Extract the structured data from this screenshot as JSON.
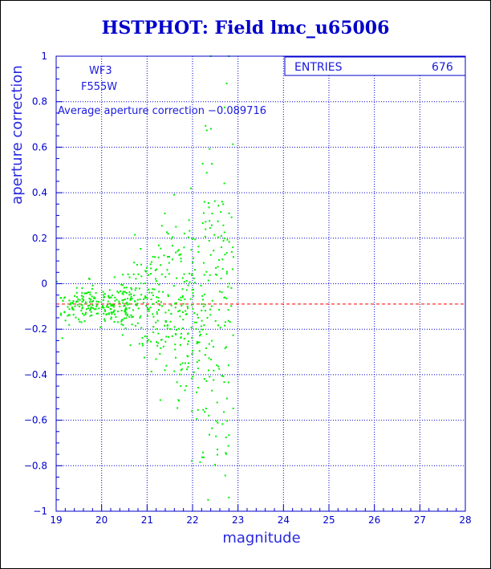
{
  "title": "HSTPHOT: Field lmc_u65006",
  "chart_data": {
    "type": "scatter",
    "title": "HSTPHOT: Field lmc_u65006",
    "xlabel": "magnitude",
    "ylabel": "aperture correction",
    "xlim": [
      19,
      28
    ],
    "ylim": [
      -1,
      1
    ],
    "x_ticks": [
      19,
      20,
      21,
      22,
      23,
      24,
      25,
      26,
      27,
      28
    ],
    "y_ticks": [
      -1,
      -0.8,
      -0.6,
      -0.4,
      -0.2,
      0,
      0.2,
      0.4,
      0.6,
      0.8,
      1
    ],
    "x_tick_labels": [
      "19",
      "20",
      "21",
      "22",
      "23",
      "24",
      "25",
      "26",
      "27",
      "28"
    ],
    "y_tick_labels": [
      "−1",
      "−0.8",
      "−0.6",
      "−0.4",
      "−0.2",
      "0",
      "0.2",
      "0.4",
      "0.6",
      "0.8",
      "1"
    ],
    "grid": true,
    "point_color": "#00ee00",
    "reference_line": {
      "y": -0.089716,
      "color": "#ff0000",
      "style": "dashed"
    },
    "annotations": {
      "camera": "WF3",
      "filter": "F555W",
      "average_text": "Average aperture correction −0.089716"
    },
    "stats": {
      "entries_label": "ENTRIES",
      "entries_value": "676"
    },
    "points_summary": {
      "count": 676,
      "x_range": [
        19.0,
        22.9
      ],
      "dense_core_y": [
        -0.35,
        0.15
      ],
      "max_y": 1.0,
      "min_y": -0.95
    }
  },
  "colors": {
    "axis": "#0000cc",
    "grid": "#0000cc",
    "points": "#00ee00",
    "reference": "#ff0000",
    "title": "#0000cc"
  }
}
